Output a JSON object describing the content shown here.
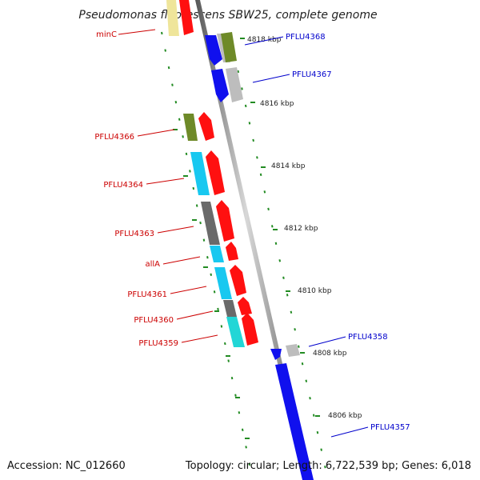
{
  "title": "Pseudomonas fluorescens SBW25, complete genome",
  "footer": {
    "accession": "Accession: NC_012660",
    "topology": "Topology: circular; Length: 6,722,539 bp; Genes: 6,018"
  },
  "ruler_labels": [
    "4818 kbp",
    "4816 kbp",
    "4814 kbp",
    "4812 kbp",
    "4810 kbp",
    "4808 kbp",
    "4806 kbp"
  ],
  "gene_labels": {
    "left": [
      "minC",
      "PFLU4366",
      "PFLU4364",
      "PFLU4363",
      "allA",
      "PFLU4361",
      "PFLU4360",
      "PFLU4359"
    ],
    "right": [
      "PFLU4368",
      "PFLU4367",
      "PFLU4358",
      "PFLU4357"
    ]
  },
  "colors": {
    "red": "#ff1010",
    "blue": "#1010ee",
    "cyan": "#18c8f0",
    "teal": "#22d6d6",
    "olive": "#6e8a28",
    "gray": "#bdbdbd",
    "darkgray": "#6a6a6a",
    "yellow": "#efe59a",
    "label_red": "#cc0000",
    "label_blue": "#0000cc",
    "tick_green": "#228b22"
  }
}
